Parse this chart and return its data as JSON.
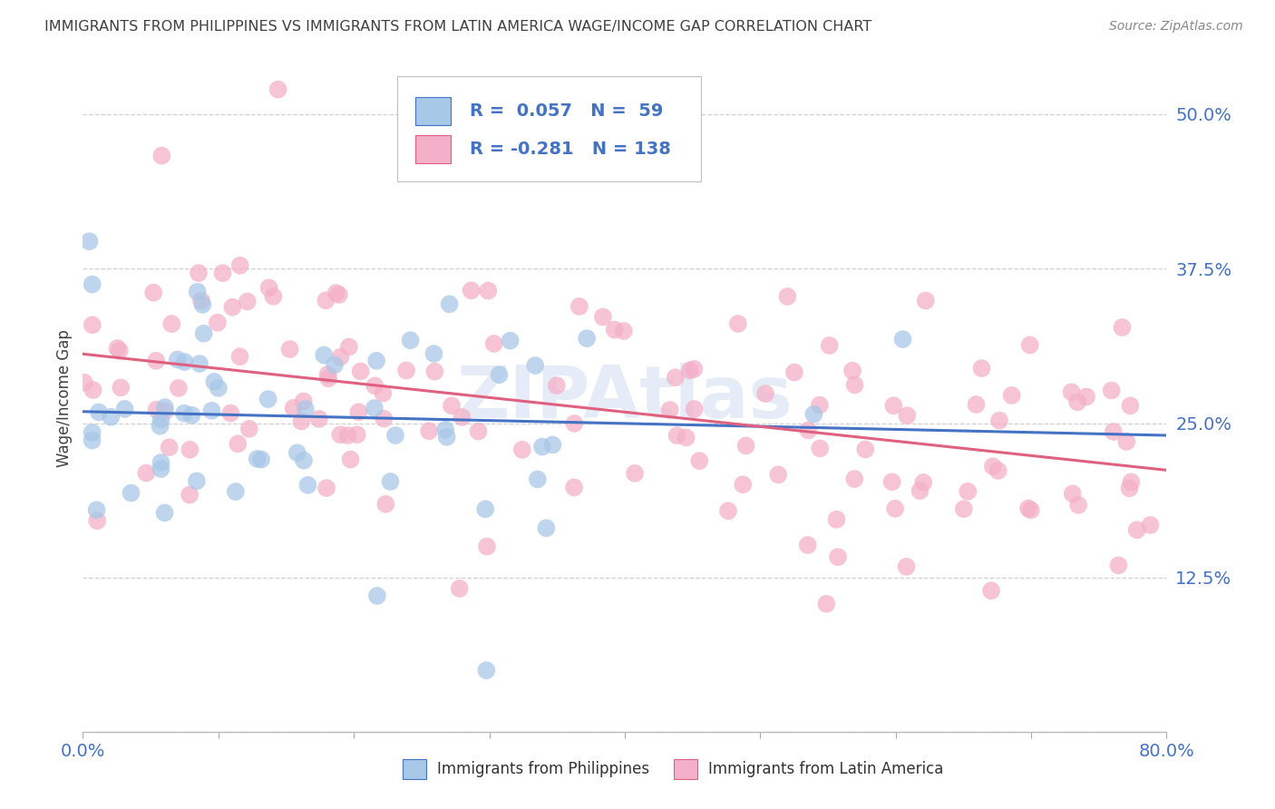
{
  "title": "IMMIGRANTS FROM PHILIPPINES VS IMMIGRANTS FROM LATIN AMERICA WAGE/INCOME GAP CORRELATION CHART",
  "source": "Source: ZipAtlas.com",
  "ylabel": "Wage/Income Gap",
  "yticks": [
    0.0,
    0.125,
    0.25,
    0.375,
    0.5
  ],
  "ytick_labels": [
    "",
    "12.5%",
    "25.0%",
    "37.5%",
    "50.0%"
  ],
  "xlim": [
    0.0,
    0.8
  ],
  "ylim": [
    0.0,
    0.54
  ],
  "R_philippines": 0.057,
  "N_philippines": 59,
  "R_latin": -0.281,
  "N_latin": 138,
  "color_philippines": "#a8c8e8",
  "color_latin": "#f4b0c8",
  "line_color_philippines": "#4472c4",
  "line_color_latin": "#e06080",
  "legend_label_philippines": "Immigrants from Philippines",
  "legend_label_latin": "Immigrants from Latin America",
  "watermark": "ZIPAtlas",
  "title_color": "#404040",
  "axis_color": "#4472c4",
  "background_color": "#ffffff",
  "grid_color": "#d0d0d0"
}
